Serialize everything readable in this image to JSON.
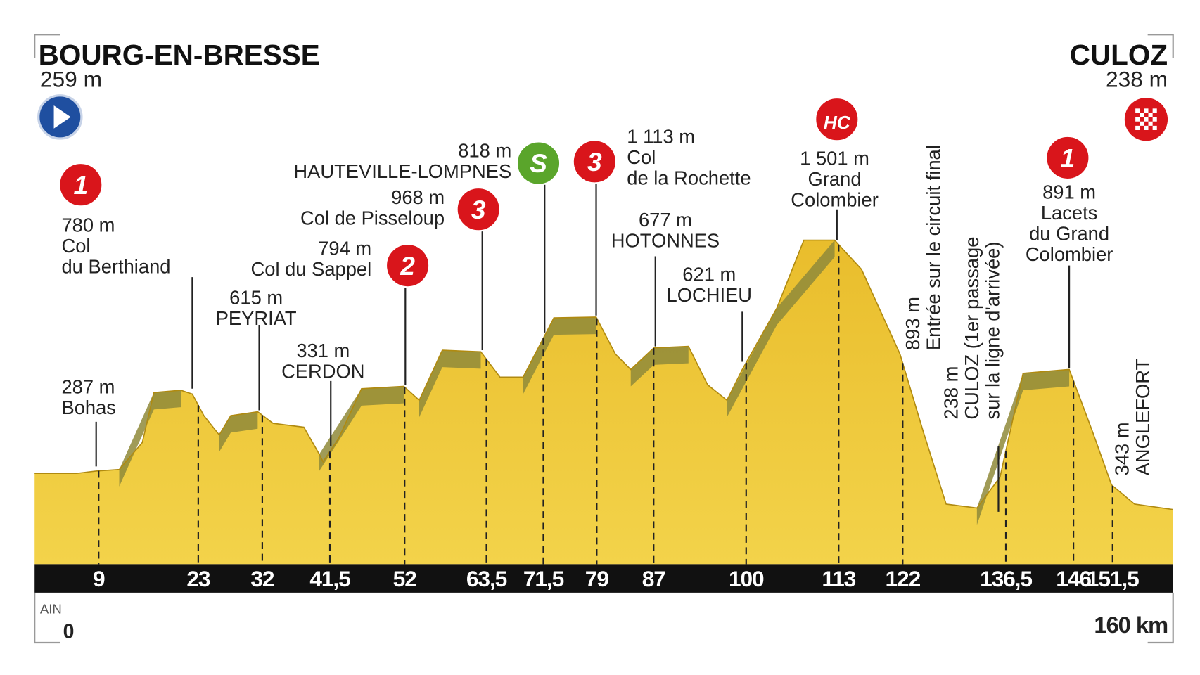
{
  "start": {
    "name": "BOURG-EN-BRESSE",
    "altitude": "259 m"
  },
  "finish": {
    "name": "CULOZ",
    "altitude": "238 m"
  },
  "climbs": [
    {
      "badge": "1",
      "lines": [
        "780 m",
        "Col",
        "du Berthiand"
      ]
    },
    {
      "lines": [
        "287 m",
        "Bohas"
      ]
    },
    {
      "lines": [
        "615 m",
        "PEYRIAT"
      ]
    },
    {
      "lines": [
        "331 m",
        "CERDON"
      ]
    },
    {
      "badge": "2",
      "lines": [
        "794 m",
        "Col du Sappel"
      ]
    },
    {
      "badge": "3",
      "lines": [
        "968 m",
        "Col de Pisseloup"
      ]
    },
    {
      "badge": "S",
      "lines": [
        "818 m",
        "HAUTEVILLE-LOMPNES"
      ]
    },
    {
      "badge": "3",
      "lines": [
        "1 113 m",
        "Col",
        "de la Rochette"
      ]
    },
    {
      "lines": [
        "677 m",
        "HOTONNES"
      ]
    },
    {
      "lines": [
        "621 m",
        "LOCHIEU"
      ]
    },
    {
      "badge": "HC",
      "lines": [
        "1 501 m",
        "Grand",
        "Colombier"
      ]
    },
    {
      "badge": "1",
      "lines": [
        "891 m",
        "Lacets",
        "du Grand",
        "Colombier"
      ]
    }
  ],
  "vertical_labels": [
    {
      "lines": [
        "893 m",
        "Entrée sur le circuit final"
      ]
    },
    {
      "lines": [
        "238 m",
        "CULOZ (1er passage",
        "sur la ligne d'arrivée)"
      ]
    },
    {
      "lines": [
        "343 m",
        "ANGLEFORT"
      ]
    }
  ],
  "km_markers": [
    "9",
    "23",
    "32",
    "41,5",
    "52",
    "63,5",
    "71,5",
    "79",
    "87",
    "100",
    "113",
    "122",
    "136,5",
    "146",
    "151,5"
  ],
  "footer": {
    "region": "AIN",
    "start_km": "0",
    "end_km": "160 km"
  }
}
